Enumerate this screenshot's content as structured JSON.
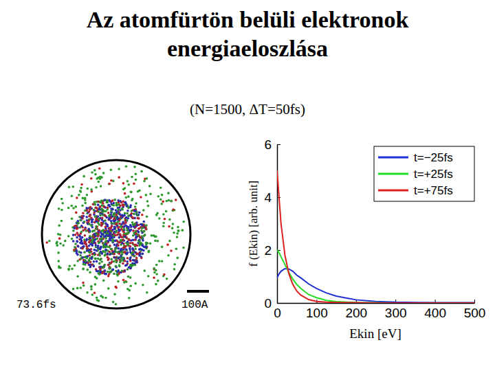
{
  "chart_data": {
    "type": "line",
    "title": "Az atomfürtön belüli elektronok\nenergiaeloszlása",
    "subtitle": "(N=1500, ΔT=50fs)",
    "x_label": "Ekin [eV]",
    "y_label": "f (Ekin) [arb. unit]",
    "x": [
      0,
      5,
      10,
      20,
      30,
      40,
      50,
      60,
      80,
      100,
      125,
      150,
      200,
      250,
      300,
      350,
      400,
      450,
      500
    ],
    "series": [
      {
        "name": "t=−25fs",
        "color": "#1f2fd0",
        "values": [
          0.95,
          1.1,
          1.2,
          1.3,
          1.28,
          1.2,
          1.05,
          0.95,
          0.72,
          0.55,
          0.38,
          0.26,
          0.12,
          0.06,
          0.03,
          0.02,
          0.01,
          0.01,
          0.01
        ]
      },
      {
        "name": "t=+25fs",
        "color": "#22dd22",
        "values": [
          2.0,
          1.9,
          1.75,
          1.45,
          1.15,
          0.9,
          0.7,
          0.55,
          0.32,
          0.2,
          0.1,
          0.05,
          0.02,
          0.01,
          0,
          0,
          0,
          0,
          0
        ]
      },
      {
        "name": "t=+75fs",
        "color": "#dd1f1f",
        "values": [
          5.0,
          4.0,
          3.0,
          1.8,
          1.1,
          0.7,
          0.45,
          0.3,
          0.13,
          0.06,
          0.03,
          0.02,
          0.01,
          0,
          0,
          0,
          0,
          0,
          0
        ]
      }
    ],
    "xlim": [
      0,
      500
    ],
    "xticks": [
      0,
      100,
      200,
      300,
      400,
      500
    ],
    "ylim": [
      0,
      6
    ],
    "yticks": [
      0,
      2,
      4,
      6
    ],
    "grid": false,
    "legend": "upper right"
  },
  "image": {
    "time": "73.6fs",
    "scale": "100A"
  }
}
